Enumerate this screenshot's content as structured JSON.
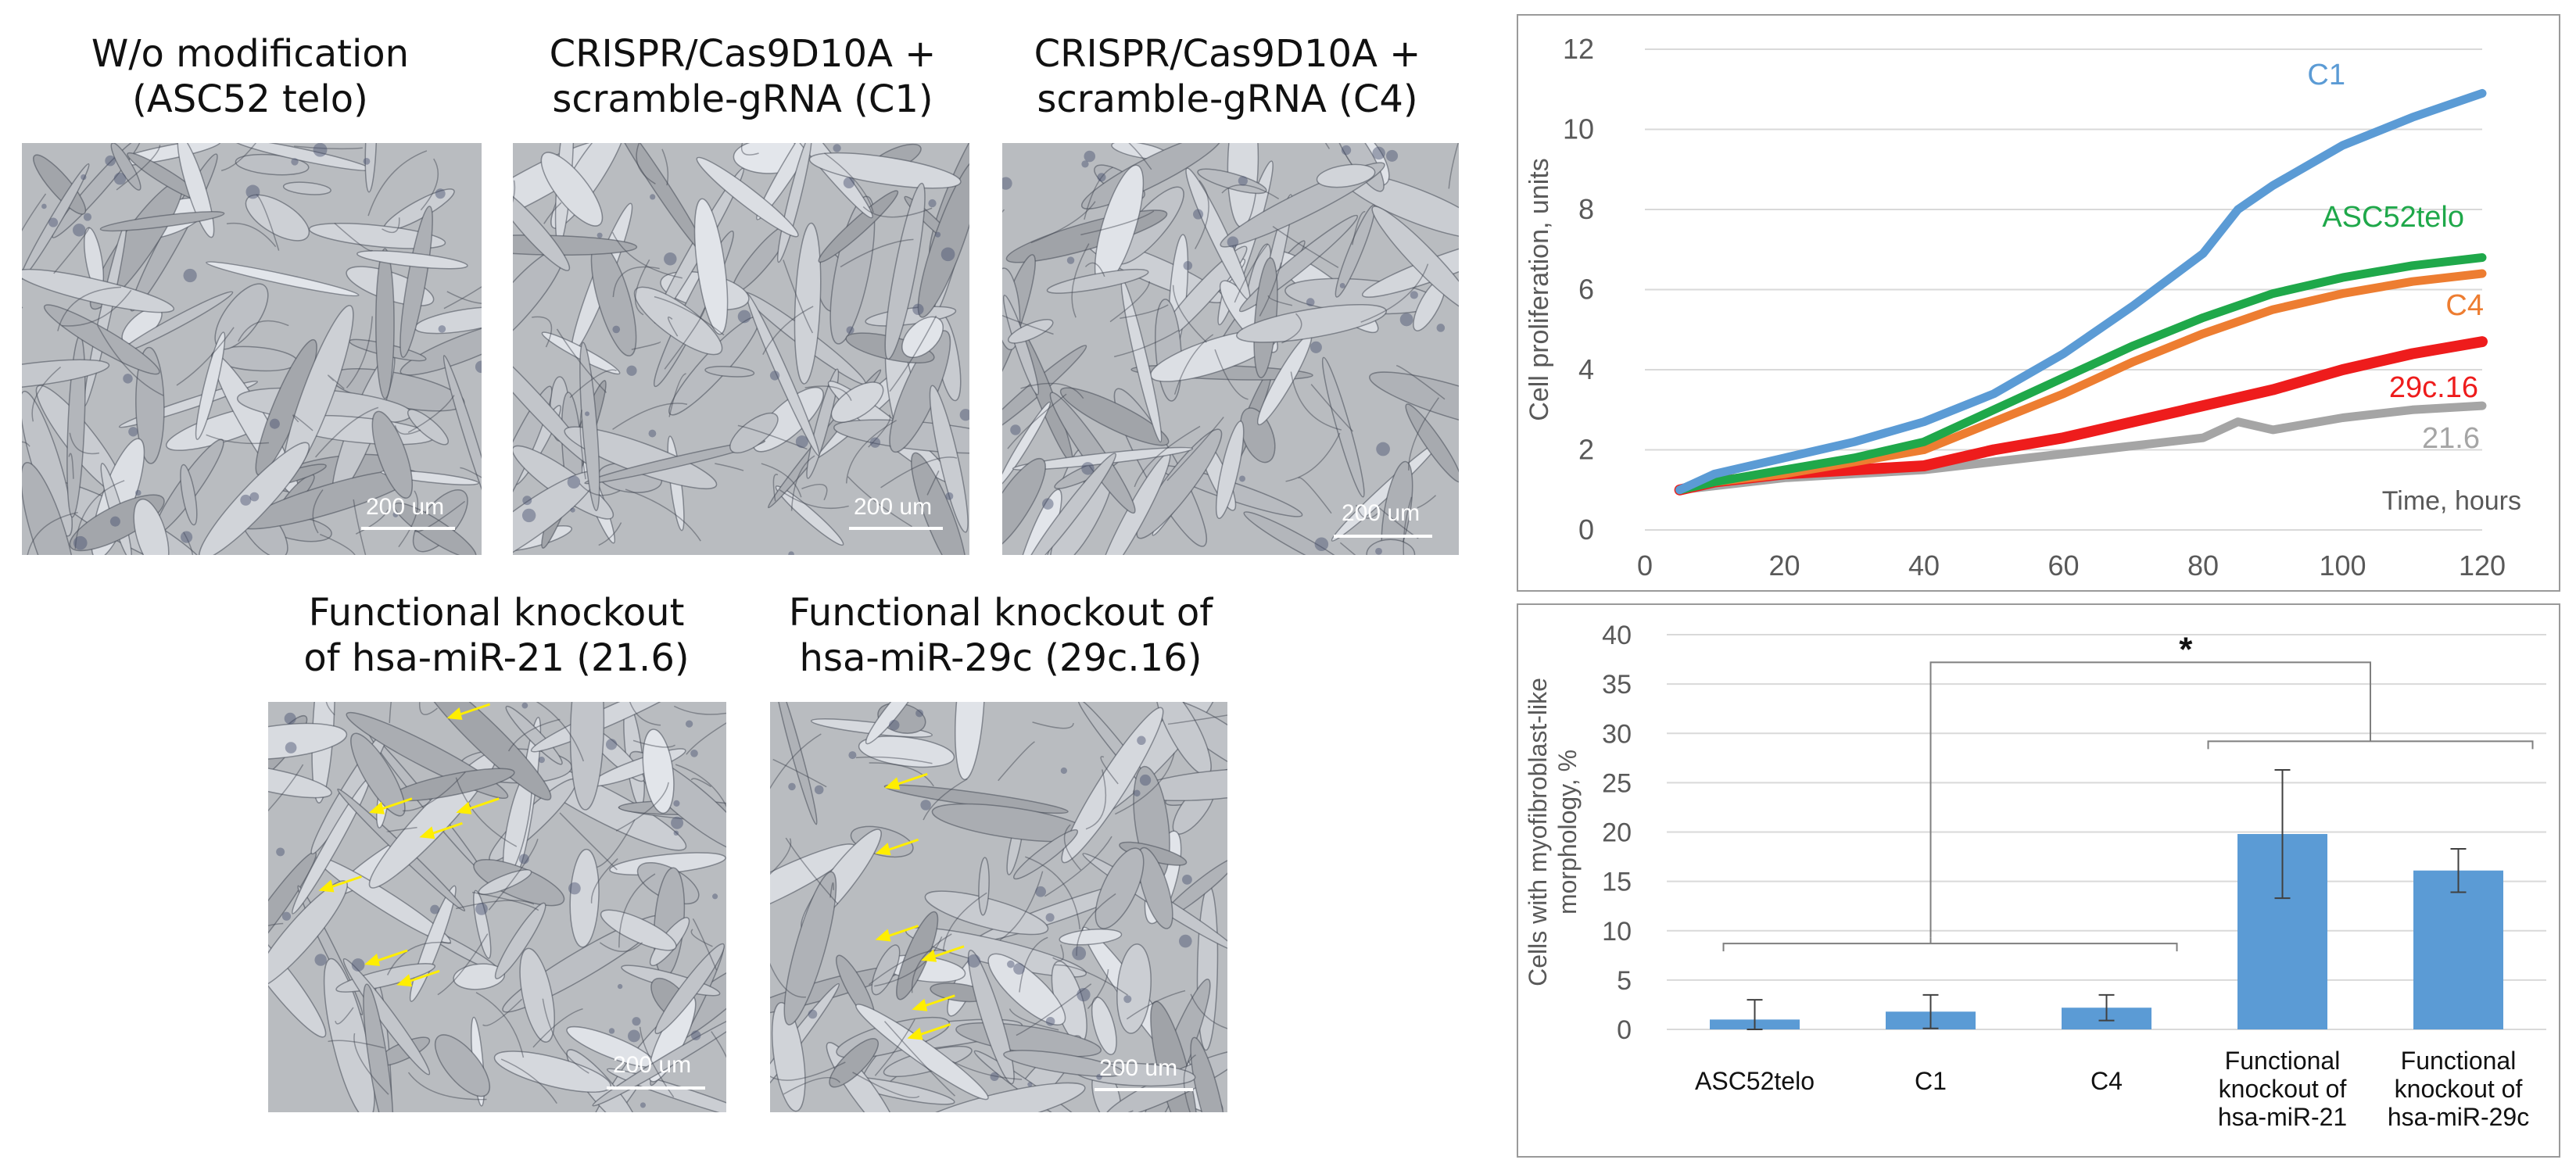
{
  "micrographs": [
    {
      "title": [
        "W/o modification",
        "(ASC52 telo)"
      ],
      "scale": "200 um",
      "arrows": 0
    },
    {
      "title": [
        "CRISPR/Cas9D10A +",
        "scramble-gRNA (C1)"
      ],
      "scale": "200 um",
      "arrows": 0
    },
    {
      "title": [
        "CRISPR/Cas9D10A +",
        "scramble-gRNA (C4)"
      ],
      "scale": "200 um",
      "arrows": 0
    },
    {
      "title": [
        "Functional knockout",
        "of hsa-miR-21 (21.6)"
      ],
      "scale": "200 um",
      "arrows": 7
    },
    {
      "title": [
        "Functional knockout of",
        "hsa-miR-29c (29c.16)"
      ],
      "scale": "200 um",
      "arrows": 6
    }
  ],
  "colors": {
    "C1": "#5b9bd5",
    "ASC52telo": "#1fa84a",
    "C4": "#ed7d31",
    "29c.16": "#ee1c1c",
    "21.6": "#a5a5a5",
    "bar": "#5b9bd5",
    "arrow": "#ffee00"
  },
  "chart_data": [
    {
      "type": "line",
      "title": "",
      "xlabel": "Time, hours",
      "ylabel": "Cell proliferation, units",
      "xlim": [
        0,
        120
      ],
      "ylim": [
        0,
        12
      ],
      "xticks": [
        0,
        20,
        40,
        60,
        80,
        100,
        120
      ],
      "yticks": [
        0,
        2,
        4,
        6,
        8,
        10,
        12
      ],
      "series": [
        {
          "name": "C1",
          "x": [
            5,
            10,
            20,
            30,
            40,
            50,
            60,
            70,
            80,
            85,
            90,
            100,
            110,
            120
          ],
          "values": [
            1.0,
            1.4,
            1.8,
            2.2,
            2.7,
            3.4,
            4.4,
            5.6,
            6.9,
            8.0,
            8.6,
            9.6,
            10.3,
            10.9
          ]
        },
        {
          "name": "ASC52telo",
          "x": [
            5,
            10,
            20,
            30,
            40,
            50,
            60,
            70,
            80,
            90,
            100,
            110,
            120
          ],
          "values": [
            1.0,
            1.2,
            1.5,
            1.8,
            2.2,
            3.0,
            3.8,
            4.6,
            5.3,
            5.9,
            6.3,
            6.6,
            6.8
          ]
        },
        {
          "name": "C4",
          "x": [
            5,
            10,
            20,
            30,
            40,
            50,
            60,
            70,
            80,
            90,
            100,
            110,
            120
          ],
          "values": [
            1.0,
            1.2,
            1.4,
            1.7,
            2.0,
            2.7,
            3.4,
            4.2,
            4.9,
            5.5,
            5.9,
            6.2,
            6.4
          ]
        },
        {
          "name": "29c.16",
          "x": [
            5,
            10,
            20,
            30,
            40,
            50,
            60,
            70,
            80,
            90,
            100,
            110,
            120
          ],
          "values": [
            1.0,
            1.2,
            1.4,
            1.5,
            1.6,
            2.0,
            2.3,
            2.7,
            3.1,
            3.5,
            4.0,
            4.4,
            4.7
          ]
        },
        {
          "name": "21.6",
          "x": [
            5,
            10,
            20,
            30,
            40,
            50,
            60,
            70,
            80,
            85,
            90,
            100,
            110,
            120
          ],
          "values": [
            1.0,
            1.1,
            1.3,
            1.4,
            1.5,
            1.7,
            1.9,
            2.1,
            2.3,
            2.7,
            2.5,
            2.8,
            3.0,
            3.1
          ]
        }
      ]
    },
    {
      "type": "bar",
      "title": "",
      "xlabel": "",
      "ylabel": "Cells with myofibroblast-like morphology, %",
      "ylim": [
        0,
        40
      ],
      "yticks": [
        0,
        5,
        10,
        15,
        20,
        25,
        30,
        35,
        40
      ],
      "categories": [
        [
          "ASC52telo"
        ],
        [
          "C1"
        ],
        [
          "C4"
        ],
        [
          "Functional",
          "knockout of",
          "hsa-miR-21"
        ],
        [
          "Functional",
          "knockout of",
          "hsa-miR-29c"
        ]
      ],
      "values": [
        1.0,
        1.8,
        2.2,
        19.8,
        16.1
      ],
      "errors": [
        2.0,
        1.7,
        1.3,
        6.5,
        2.2
      ],
      "significance": "*"
    }
  ]
}
